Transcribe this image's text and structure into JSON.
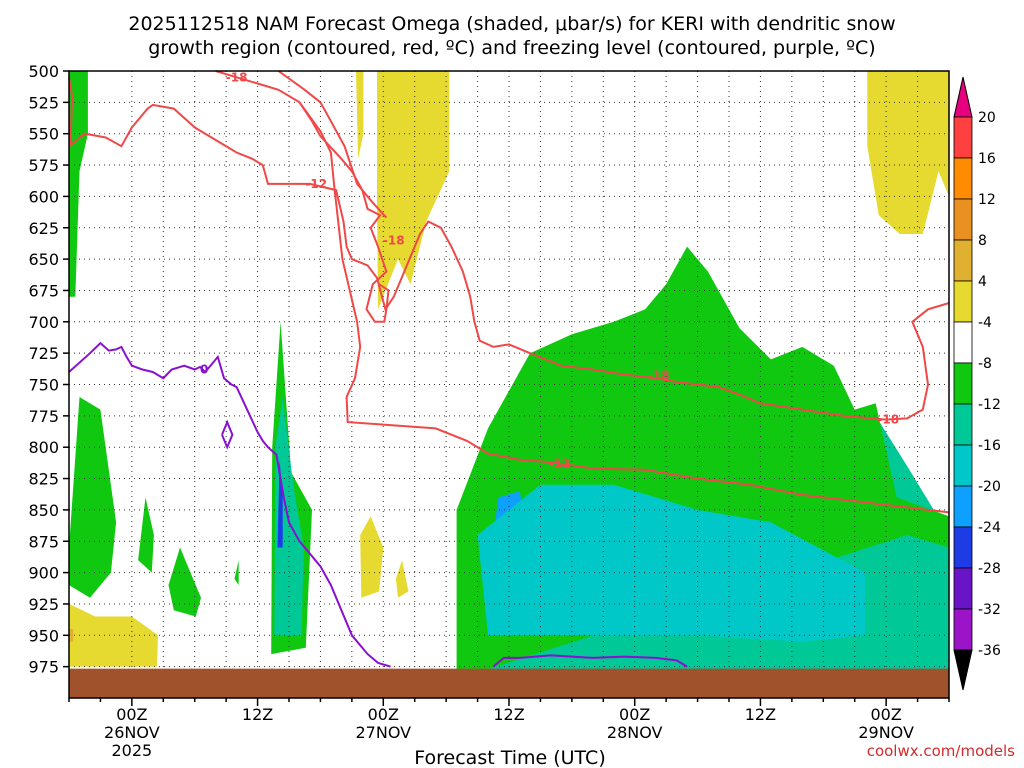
{
  "chart_data": {
    "type": "heatmap",
    "title_line1": "2025112518 NAM Forecast Omega (shaded, μbar/s) for KERI with dendritic snow",
    "title_line2": "growth region (contoured, red, ºC) and freezing level (contoured, purple, ºC)",
    "xlabel": "Forecast Time (UTC)",
    "credit": "coolwx.com/models",
    "x_ticks": [
      {
        "hour": 6,
        "lines": [
          "00Z",
          "26NOV",
          "2025"
        ]
      },
      {
        "hour": 18,
        "lines": [
          "12Z"
        ]
      },
      {
        "hour": 30,
        "lines": [
          "00Z",
          "27NOV"
        ]
      },
      {
        "hour": 42,
        "lines": [
          "12Z"
        ]
      },
      {
        "hour": 54,
        "lines": [
          "00Z",
          "28NOV"
        ]
      },
      {
        "hour": 66,
        "lines": [
          "12Z"
        ]
      },
      {
        "hour": 78,
        "lines": [
          "00Z",
          "29NOV"
        ]
      }
    ],
    "xlim": [
      0,
      84
    ],
    "y_levels": [
      500,
      525,
      550,
      575,
      600,
      625,
      650,
      675,
      700,
      725,
      750,
      775,
      800,
      825,
      850,
      875,
      900,
      925,
      950,
      975
    ],
    "ylim": [
      500,
      1000
    ],
    "grid": true,
    "colorbar": {
      "labels": [
        "20",
        "16",
        "12",
        "8",
        "4",
        "-4",
        "-8",
        "-12",
        "-16",
        "-20",
        "-24",
        "-28",
        "-32",
        "-36"
      ],
      "bounds": [
        20,
        16,
        12,
        8,
        4,
        -4,
        -8,
        -12,
        -16,
        -20,
        -24,
        -28,
        -32,
        -36
      ],
      "colors": [
        "#ff4040",
        "#ff8c00",
        "#e89020",
        "#e0b030",
        "#e6da30",
        "#ffffff",
        "#11c811",
        "#00c896",
        "#00c8c8",
        "#0ea0ff",
        "#1e3ce6",
        "#6a14c8",
        "#9b14c8",
        "#a0a0a0"
      ]
    },
    "omega_regions": [
      {
        "name": "strong-upward-main",
        "value": -12,
        "color": "#00c896",
        "points": [
          [
            37.5,
            975
          ],
          [
            38,
            850
          ],
          [
            39,
            815
          ],
          [
            41,
            795
          ],
          [
            45,
            765
          ],
          [
            50,
            740
          ],
          [
            55,
            725
          ],
          [
            60,
            720
          ],
          [
            65,
            750
          ],
          [
            72,
            770
          ],
          [
            77,
            775
          ],
          [
            80,
            815
          ],
          [
            84,
            870
          ],
          [
            84,
            985
          ],
          [
            37.5,
            985
          ]
        ]
      },
      {
        "name": "weak-upward-main",
        "value": -8,
        "color": "#11c811",
        "points": [
          [
            37,
            975
          ],
          [
            37,
            850
          ],
          [
            40,
            785
          ],
          [
            44,
            725
          ],
          [
            48,
            710
          ],
          [
            52,
            700
          ],
          [
            55,
            690
          ],
          [
            57,
            670
          ],
          [
            59,
            640
          ],
          [
            61,
            660
          ],
          [
            64,
            705
          ],
          [
            67,
            730
          ],
          [
            70,
            720
          ],
          [
            73,
            735
          ],
          [
            75,
            770
          ],
          [
            77,
            765
          ],
          [
            79,
            840
          ],
          [
            84,
            855
          ],
          [
            84,
            880
          ],
          [
            80,
            870
          ],
          [
            37,
            985
          ]
        ]
      },
      {
        "name": "upward-16-center1",
        "value": -16,
        "color": "#0ea0ff",
        "points": [
          [
            41,
            840
          ],
          [
            43,
            835
          ],
          [
            44,
            870
          ],
          [
            43,
            935
          ],
          [
            41,
            935
          ],
          [
            40,
            900
          ]
        ]
      },
      {
        "name": "upward-16-center2",
        "value": -16,
        "color": "#0ea0ff",
        "points": [
          [
            52,
            850
          ],
          [
            54,
            835
          ],
          [
            57,
            870
          ],
          [
            55,
            930
          ],
          [
            53,
            935
          ],
          [
            52,
            900
          ]
        ]
      },
      {
        "name": "upward-16-center3",
        "value": -16,
        "color": "#00c8c8",
        "points": [
          [
            39,
            870
          ],
          [
            45,
            830
          ],
          [
            52,
            830
          ],
          [
            60,
            850
          ],
          [
            67,
            860
          ],
          [
            76,
            900
          ],
          [
            76,
            950
          ],
          [
            70,
            955
          ],
          [
            60,
            950
          ],
          [
            50,
            950
          ],
          [
            40,
            950
          ]
        ]
      },
      {
        "name": "upward-spike-1",
        "value": -8,
        "color": "#11c811",
        "points": [
          [
            19.3,
            965
          ],
          [
            19.4,
            800
          ],
          [
            20.2,
            700
          ],
          [
            21.2,
            820
          ],
          [
            23.2,
            850
          ],
          [
            22.6,
            960
          ]
        ]
      },
      {
        "name": "upward-spike-1-core",
        "value": -12,
        "color": "#00c896",
        "points": [
          [
            19.6,
            950
          ],
          [
            19.7,
            800
          ],
          [
            20.4,
            760
          ],
          [
            21.4,
            830
          ],
          [
            22.4,
            880
          ],
          [
            22.2,
            950
          ]
        ]
      },
      {
        "name": "upward-spike-1-blue",
        "value": -20,
        "color": "#1e3ce6",
        "points": [
          [
            19.9,
            880
          ],
          [
            20.1,
            810
          ],
          [
            20.4,
            840
          ],
          [
            20.4,
            880
          ]
        ]
      },
      {
        "name": "upward-west-strip",
        "value": -8,
        "color": "#11c811",
        "points": [
          [
            0,
            680
          ],
          [
            0,
            500
          ],
          [
            1.8,
            500
          ],
          [
            1.8,
            550
          ],
          [
            1,
            580
          ],
          [
            0.6,
            680
          ]
        ]
      },
      {
        "name": "upward-west-low",
        "value": -8,
        "color": "#11c811",
        "points": [
          [
            0,
            880
          ],
          [
            1,
            760
          ],
          [
            3,
            770
          ],
          [
            4.5,
            860
          ],
          [
            4,
            900
          ],
          [
            2,
            920
          ],
          [
            0,
            910
          ]
        ]
      },
      {
        "name": "upward-west-patch2",
        "value": -8,
        "color": "#11c811",
        "points": [
          [
            6.6,
            890
          ],
          [
            7.3,
            840
          ],
          [
            8.1,
            870
          ],
          [
            7.9,
            900
          ]
        ]
      },
      {
        "name": "upward-west-patch3",
        "value": -8,
        "color": "#11c811",
        "points": [
          [
            9.5,
            910
          ],
          [
            10.6,
            880
          ],
          [
            12.6,
            920
          ],
          [
            12.1,
            935
          ],
          [
            10,
            930
          ]
        ]
      },
      {
        "name": "upward-west-patch4",
        "value": -8,
        "color": "#11c811",
        "points": [
          [
            15.8,
            905
          ],
          [
            16.2,
            890
          ],
          [
            16.2,
            910
          ]
        ]
      },
      {
        "name": "downward-top-left",
        "value": 4,
        "color": "#e6da30",
        "points": [
          [
            27.4,
            500
          ],
          [
            28.1,
            500
          ],
          [
            28.1,
            550
          ],
          [
            27.6,
            570
          ]
        ]
      },
      {
        "name": "downward-top-mid",
        "value": 4,
        "color": "#e6da30",
        "points": [
          [
            29.4,
            500
          ],
          [
            36.3,
            500
          ],
          [
            36.3,
            580
          ],
          [
            34.1,
            620
          ],
          [
            32.6,
            670
          ],
          [
            31.4,
            650
          ],
          [
            29.5,
            690
          ],
          [
            29.4,
            600
          ]
        ]
      },
      {
        "name": "downward-top-right",
        "value": 4,
        "color": "#e6da30",
        "points": [
          [
            76.2,
            500
          ],
          [
            84,
            500
          ],
          [
            84,
            600
          ],
          [
            83,
            580
          ],
          [
            81.5,
            630
          ],
          [
            79.3,
            630
          ],
          [
            77.3,
            615
          ],
          [
            76.2,
            560
          ]
        ]
      },
      {
        "name": "downward-bottom-left",
        "value": 4,
        "color": "#e6da30",
        "points": [
          [
            0,
            925
          ],
          [
            2.5,
            935
          ],
          [
            6,
            935
          ],
          [
            8.5,
            950
          ],
          [
            8.4,
            975
          ],
          [
            0,
            975
          ]
        ]
      },
      {
        "name": "downward-bottom-left-orange",
        "value": 8,
        "color": "#e0b030",
        "points": [
          [
            0,
            945
          ],
          [
            0.4,
            945
          ],
          [
            0.4,
            955
          ],
          [
            0,
            955
          ]
        ]
      },
      {
        "name": "downward-mid-small",
        "value": 4,
        "color": "#e6da30",
        "points": [
          [
            27.8,
            870
          ],
          [
            28.8,
            855
          ],
          [
            30,
            880
          ],
          [
            29.6,
            915
          ],
          [
            27.9,
            920
          ]
        ]
      },
      {
        "name": "downward-mid-small2",
        "value": 4,
        "color": "#e6da30",
        "points": [
          [
            31.2,
            905
          ],
          [
            31.8,
            890
          ],
          [
            32.4,
            915
          ],
          [
            31.4,
            920
          ]
        ]
      }
    ],
    "dgz_contours": [
      {
        "label": "-18",
        "label_positions": [
          [
            16.0,
            505
          ],
          [
            31.0,
            635
          ],
          [
            56.3,
            743
          ],
          [
            78.2,
            778
          ]
        ]
      },
      {
        "label": "-12",
        "label_positions": [
          [
            23.6,
            590
          ],
          [
            46.8,
            813
          ]
        ]
      }
    ],
    "freezing_level": {
      "label": "0",
      "label_positions": [
        [
          12.9,
          738
        ]
      ]
    },
    "terrain": {
      "color": "#a0522d",
      "level": 975
    }
  }
}
